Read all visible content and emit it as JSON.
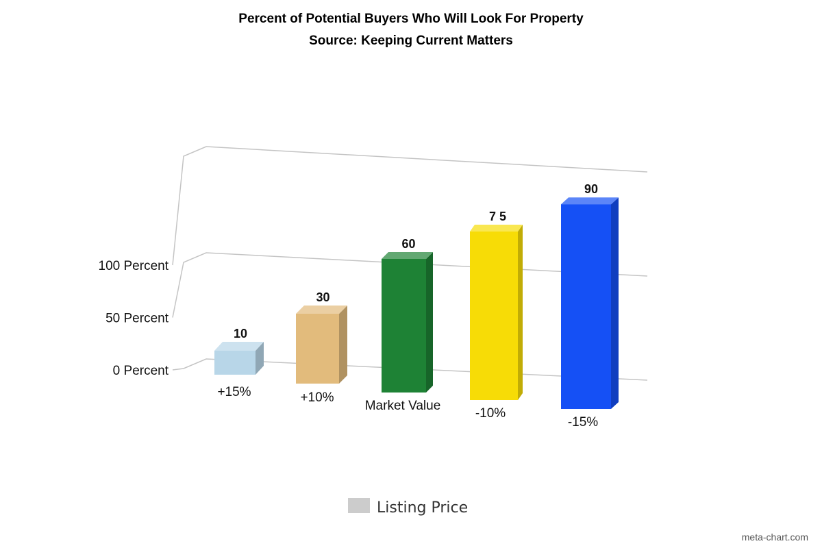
{
  "chart_data": {
    "type": "bar",
    "title": "Percent of Potential Buyers Who Will Look For Property",
    "subtitle": "Source: Keeping Current Matters",
    "categories": [
      "+15%",
      "+10%",
      "Market Value",
      "-10%",
      "-15%"
    ],
    "series": [
      {
        "name": "Listing Price",
        "values": [
          10,
          30,
          60,
          75,
          90
        ],
        "data_labels": [
          "10",
          "30",
          "60",
          "7 5",
          "90"
        ]
      }
    ],
    "y_ticks": [
      "0 Percent",
      "50 Percent",
      "100 Percent"
    ],
    "ylim": [
      0,
      100
    ],
    "xlabel": "",
    "ylabel": "",
    "grid": true,
    "legend_position": "bottom-center",
    "three_d": true,
    "bar_colors": [
      "#b8d6e8",
      "#e2bb7c",
      "#1e8235",
      "#f7dc06",
      "#1550f5"
    ],
    "legend_color": "#cccccc"
  },
  "credit": "meta-chart.com"
}
